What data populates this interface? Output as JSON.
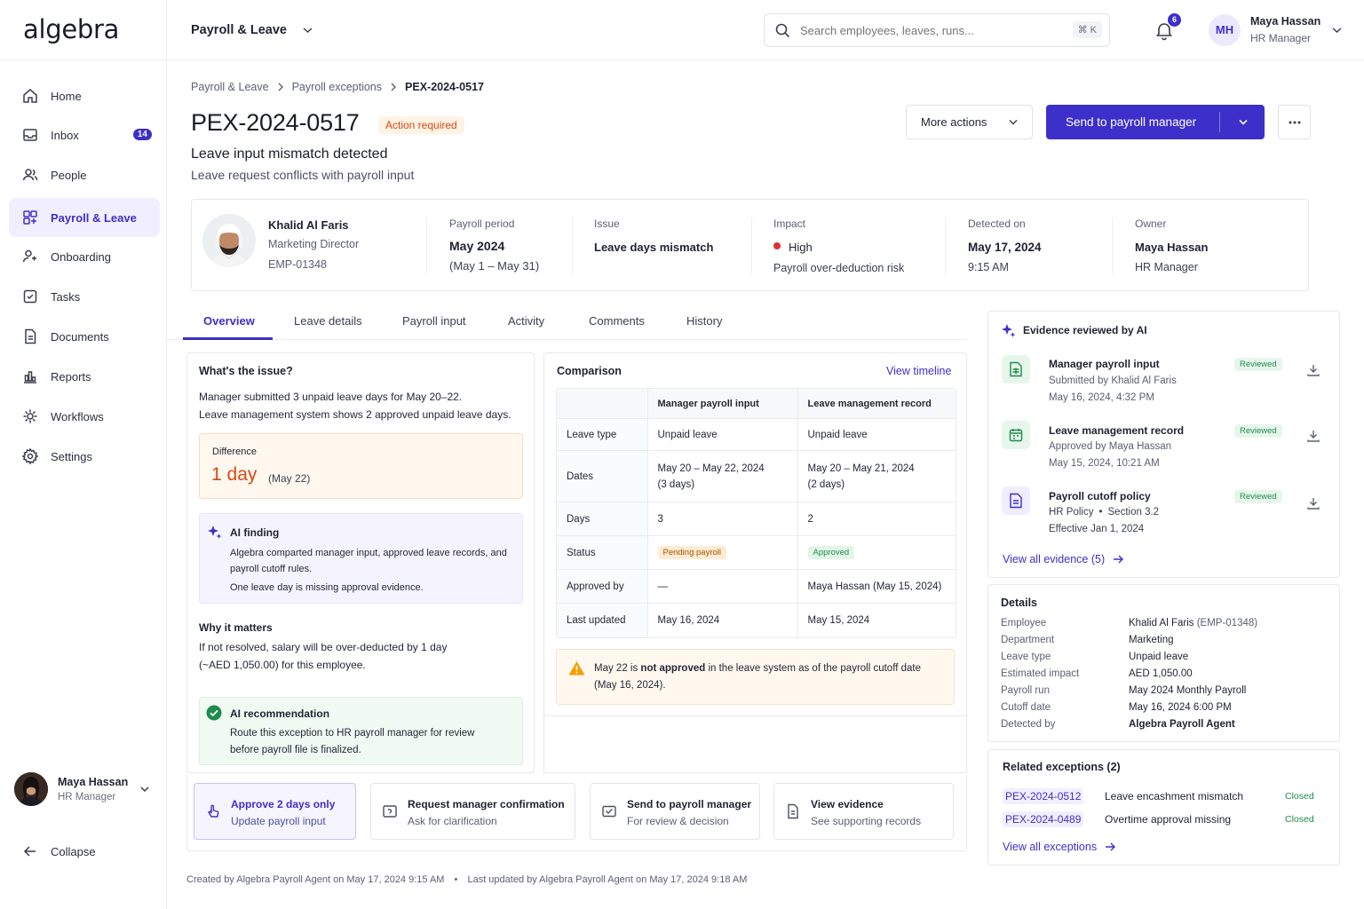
{
  "app": {
    "logo": "algebra",
    "section": "Payroll & Leave"
  },
  "search": {
    "placeholder": "Search employees, leaves, runs...",
    "shortcut": "⌘ K"
  },
  "notifications": {
    "count": "6"
  },
  "user": {
    "initials": "MH",
    "name": "Maya Hassan",
    "role": "HR Manager"
  },
  "sidebar": {
    "items": [
      {
        "label": "Home",
        "icon": "home-icon"
      },
      {
        "label": "Inbox",
        "icon": "inbox-icon",
        "badge": "14"
      },
      {
        "label": "People",
        "icon": "people-icon"
      },
      {
        "label": "Payroll & Leave",
        "icon": "payroll-icon",
        "active": true
      },
      {
        "label": "Onboarding",
        "icon": "onboarding-icon"
      },
      {
        "label": "Tasks",
        "icon": "tasks-icon"
      },
      {
        "label": "Documents",
        "icon": "documents-icon"
      },
      {
        "label": "Reports",
        "icon": "reports-icon"
      },
      {
        "label": "Workflows",
        "icon": "workflows-icon"
      },
      {
        "label": "Settings",
        "icon": "settings-icon"
      }
    ],
    "collapse_label": "Collapse"
  },
  "breadcrumb": [
    "Payroll & Leave",
    "Payroll exceptions",
    "PEX-2024-0517"
  ],
  "header": {
    "id": "PEX-2024-0517",
    "status": "Action required",
    "title": "Leave input mismatch detected",
    "subtitle": "Leave request conflicts with payroll input",
    "more_actions": "More actions",
    "primary": "Send to payroll manager"
  },
  "summary": {
    "employee": {
      "name": "Khalid Al Faris",
      "title": "Marketing Director",
      "id": "EMP-01348"
    },
    "payroll_period": {
      "label": "Payroll period",
      "value": "May 2024",
      "range": "(May 1 – May 31)"
    },
    "issue": {
      "label": "Issue",
      "value": "Leave days mismatch"
    },
    "impact": {
      "label": "Impact",
      "value": "High",
      "note": "Payroll over-deduction risk"
    },
    "detected": {
      "label": "Detected on",
      "date": "May 17, 2024",
      "time": "9:15 AM"
    },
    "owner": {
      "label": "Owner",
      "name": "Maya Hassan",
      "role": "HR Manager"
    }
  },
  "tabs": [
    "Overview",
    "Leave details",
    "Payroll input",
    "Activity",
    "Comments",
    "History"
  ],
  "issue_panel": {
    "title": "What's the issue?",
    "line1": "Manager submitted 3 unpaid leave days for May 20–22.",
    "line2": "Leave management system shows 2 approved unpaid leave days.",
    "diff_label": "Difference",
    "diff_value": "1 day",
    "diff_note": "(May 22)",
    "ai_finding_title": "AI finding",
    "ai_finding_1": "Algebra comparted manager input, approved leave records, and",
    "ai_finding_2": "payroll cutoff rules.",
    "ai_finding_3": "One leave day is missing approval evidence.",
    "why_title": "Why it matters",
    "why_1": "If not resolved, salary will be over-deducted by 1 day",
    "why_2": "(~AED 1,050.00) for this employee.",
    "rec_title": "AI recommendation",
    "rec_1": "Route this exception to HR payroll manager for review",
    "rec_2": "before payroll file is finalized."
  },
  "comparison": {
    "title": "Comparison",
    "link": "View timeline",
    "col1": "Manager payroll input",
    "col2": "Leave management record",
    "rows": {
      "type": {
        "label": "Leave type",
        "a": "Unpaid leave",
        "b": "Unpaid leave"
      },
      "dates": {
        "label": "Dates",
        "a1": "May 20 – May 22, 2024",
        "a2": "(3 days)",
        "b1": "May 20 – May 21, 2024",
        "b2": "(2 days)"
      },
      "days": {
        "label": "Days",
        "a": "3",
        "b": "2"
      },
      "status": {
        "label": "Status",
        "a": "Pending payroll",
        "b": "Approved"
      },
      "approved": {
        "label": "Approved by",
        "a": "—",
        "b": "Maya Hassan (May 15, 2024)"
      },
      "updated": {
        "label": "Last updated",
        "a": "May 16, 2024",
        "b": "May 15, 2024"
      }
    },
    "warn_pre": "May 22 is ",
    "warn_bold": "not approved",
    "warn_post": " in the leave system as of the payroll cutoff date",
    "warn_2": "(May 16, 2024)."
  },
  "evidence": {
    "title": "Evidence reviewed by AI",
    "items": [
      {
        "title": "Manager payroll input",
        "l1": "Submitted by Khalid Al Faris",
        "l2": "May 16, 2024, 4:32 PM",
        "status": "Reviewed",
        "icon": "spreadsheet-icon"
      },
      {
        "title": "Leave management record",
        "l1": "Approved by Maya Hassan",
        "l2": "May 15, 2024, 10:21 AM",
        "status": "Reviewed",
        "icon": "calendar-icon"
      },
      {
        "title": "Payroll cutoff policy",
        "l1a": "HR Policy",
        "l1b": "Section 3.2",
        "l2": "Effective Jan 1, 2024",
        "status": "Reviewed",
        "icon": "document-icon"
      }
    ],
    "link": "View all evidence (5)"
  },
  "details": {
    "title": "Details",
    "rows": [
      {
        "k": "Employee",
        "v": "Khalid Al Faris",
        "v2": " (EMP-01348)"
      },
      {
        "k": "Department",
        "v": "Marketing"
      },
      {
        "k": "Leave type",
        "v": "Unpaid leave"
      },
      {
        "k": "Estimated impact",
        "v": "AED 1,050.00"
      },
      {
        "k": "Payroll run",
        "v": "May 2024 Monthly Payroll"
      },
      {
        "k": "Cutoff date",
        "v": "May 16, 2024 6:00 PM"
      },
      {
        "k": "Detected by",
        "v": "Algebra Payroll Agent"
      }
    ]
  },
  "related": {
    "title": "Related exceptions (2)",
    "items": [
      {
        "id": "PEX-2024-0512",
        "desc": "Leave encashment mismatch",
        "status": "Closed"
      },
      {
        "id": "PEX-2024-0489",
        "desc": "Overtime approval missing",
        "status": "Closed"
      }
    ],
    "link": "View all exceptions"
  },
  "actions": [
    {
      "title": "Approve 2 days only",
      "sub": "Update payroll input"
    },
    {
      "title": "Request manager confirmation",
      "sub": "Ask for clarification"
    },
    {
      "title": "Send to payroll manager",
      "sub": "For review & decision"
    },
    {
      "title": "View evidence",
      "sub": "See supporting records"
    }
  ],
  "footer": {
    "created": "Created by Algebra Payroll Agent on May 17, 2024 9:15 AM",
    "sep": "•",
    "updated": "Last updated by Algebra Payroll Agent on May 17, 2024 9:18 AM"
  },
  "colors": {
    "accent": "#3d2fc9",
    "warning": "#d9480f",
    "success": "#1e8c4a",
    "danger": "#e03131"
  }
}
